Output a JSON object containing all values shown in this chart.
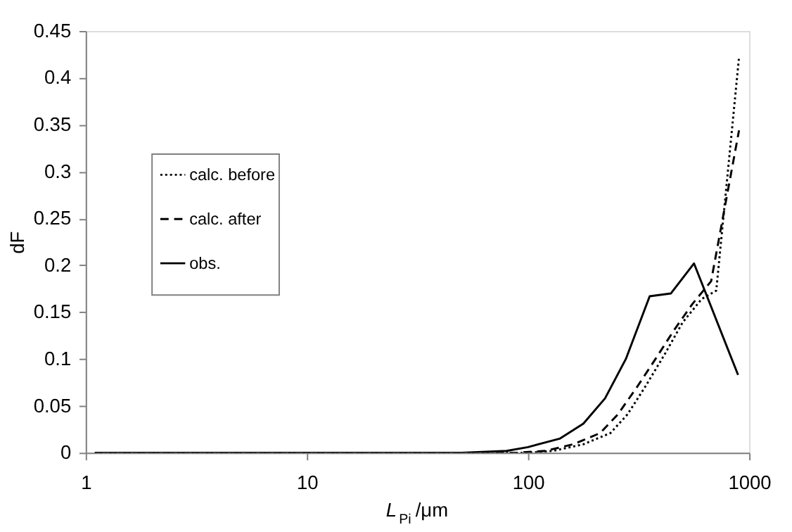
{
  "chart_data": {
    "type": "line",
    "xlabel": "L$_{Pi}$/μm",
    "ylabel": "dF",
    "log": "x",
    "xlim": [
      1,
      1000
    ],
    "xticks": [
      1,
      10,
      100,
      1000
    ],
    "ylim": [
      0,
      0.45
    ],
    "yticks": [
      0,
      0.05,
      0.1,
      0.15,
      0.2,
      0.25,
      0.3,
      0.35,
      0.4,
      0.45
    ],
    "grid": false,
    "legend": "left",
    "marker": "none",
    "series": [
      {
        "name": "calc. before",
        "color": "#000000",
        "line_style": "dotted",
        "x": [
          1.1,
          10,
          50,
          100,
          130,
          178,
          236,
          282,
          340,
          415,
          500,
          610,
          710,
          900
        ],
        "values": [
          0,
          0,
          0,
          0,
          0.002,
          0.009,
          0.021,
          0.041,
          0.071,
          0.105,
          0.139,
          0.164,
          0.173,
          0.422
        ]
      },
      {
        "name": "calc. after",
        "color": "#000000",
        "line_style": "dashed",
        "x": [
          1.1,
          10,
          50,
          90,
          120,
          160,
          212,
          255,
          313,
          377,
          455,
          555,
          673,
          900
        ],
        "values": [
          0,
          0,
          0,
          0,
          0.002,
          0.009,
          0.021,
          0.041,
          0.071,
          0.1,
          0.13,
          0.159,
          0.183,
          0.344
        ]
      },
      {
        "name": "obs.",
        "color": "#000000",
        "line_style": "solid",
        "x": [
          1.1,
          10,
          50,
          80,
          100,
          139,
          178,
          223,
          277,
          355,
          443,
          563,
          891
        ],
        "values": [
          0,
          0,
          0,
          0.002,
          0.006,
          0.015,
          0.031,
          0.058,
          0.1,
          0.167,
          0.17,
          0.202,
          0.083
        ]
      }
    ]
  }
}
